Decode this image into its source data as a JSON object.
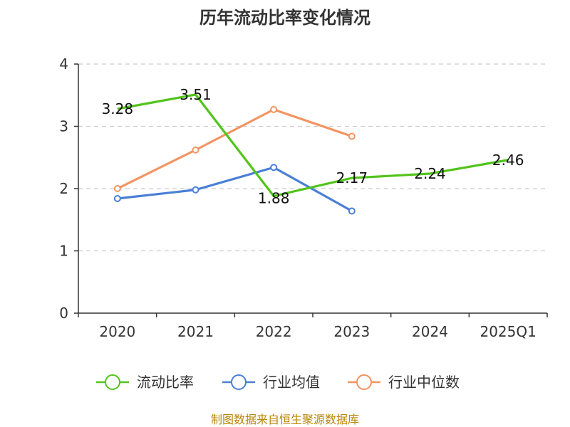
{
  "chart_data": {
    "type": "line",
    "title": "历年流动比率变化情况",
    "categories": [
      "2020",
      "2021",
      "2022",
      "2023",
      "2024",
      "2025Q1"
    ],
    "ylim": [
      0,
      4
    ],
    "yticks": [
      0,
      1,
      2,
      3,
      4
    ],
    "grid": true,
    "legend_position": "bottom",
    "series": [
      {
        "name": "流动比率",
        "color": "#52c41a",
        "values": [
          3.28,
          3.51,
          1.88,
          2.17,
          2.24,
          2.46
        ],
        "labels": [
          "3.28",
          "3.51",
          "1.88",
          "2.17",
          "2.24",
          "2.46"
        ],
        "markers": false
      },
      {
        "name": "行业均值",
        "color": "#4a7fd6",
        "values": [
          1.84,
          1.98,
          2.34,
          1.64,
          null,
          null
        ],
        "markers": true
      },
      {
        "name": "行业中位数",
        "color": "#f39461",
        "values": [
          2.0,
          2.62,
          3.27,
          2.84,
          null,
          null
        ],
        "markers": true
      }
    ]
  },
  "source": "制图数据来自恒生聚源数据库"
}
